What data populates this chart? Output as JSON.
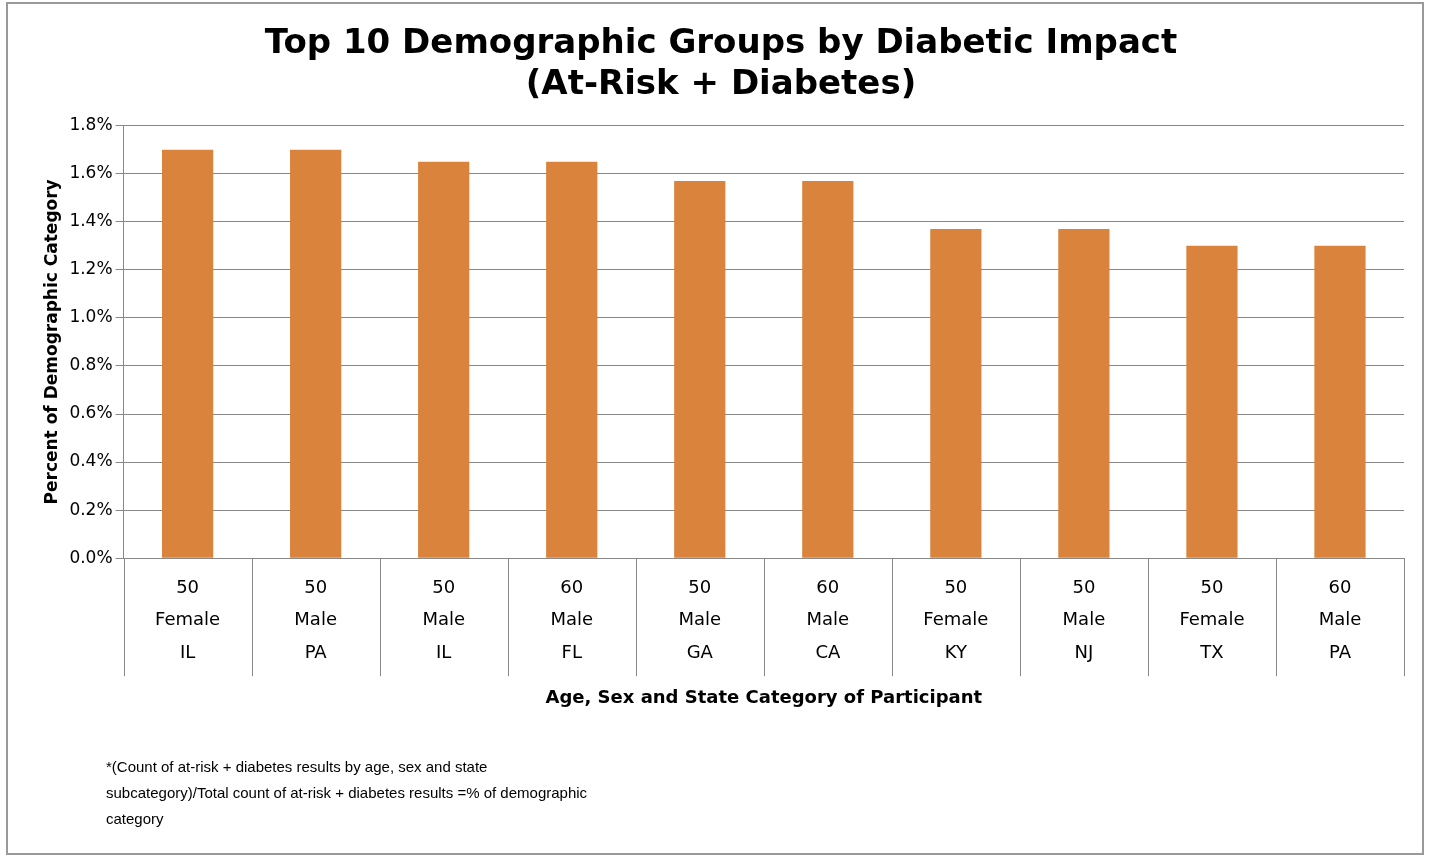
{
  "chart_data": {
    "type": "bar",
    "title": "Top 10 Demographic Groups by Diabetic Impact\n(At-Risk + Diabetes)",
    "xlabel": "Age, Sex and State Category of Participant",
    "ylabel": "Percent of Demographic Category",
    "categories": [
      "50\nFemale\nIL",
      "50\nMale\nPA",
      "50\nMale\nIL",
      "60\nMale\nFL",
      "50\nMale\nGA",
      "60\nMale\nCA",
      "50\nFemale\nKY",
      "50\nMale\nNJ",
      "50\nFemale\nTX",
      "60\nMale\nPA"
    ],
    "values": [
      1.7,
      1.7,
      1.65,
      1.65,
      1.57,
      1.57,
      1.37,
      1.37,
      1.3,
      1.3
    ],
    "color": "#d9833c",
    "ylim": [
      0,
      1.8
    ],
    "yticks": [
      {
        "value": 0,
        "label": "0.0%"
      },
      {
        "value": 0.2,
        "label": "0.2%"
      },
      {
        "value": 0.4,
        "label": "0.4%"
      },
      {
        "value": 0.6,
        "label": "0.6%"
      },
      {
        "value": 0.8,
        "label": "0.8%"
      },
      {
        "value": 1.0,
        "label": "1.0%"
      },
      {
        "value": 1.2,
        "label": "1.2%"
      },
      {
        "value": 1.4,
        "label": "1.4%"
      },
      {
        "value": 1.6,
        "label": "1.6%"
      },
      {
        "value": 1.8,
        "label": "1.8%"
      }
    ],
    "grid": "y",
    "legend": false,
    "annotations": [
      "*(Count of at-risk + diabetes results by age, sex and state subcategory)/Total count of at-risk + diabetes results =% of demographic category"
    ]
  }
}
